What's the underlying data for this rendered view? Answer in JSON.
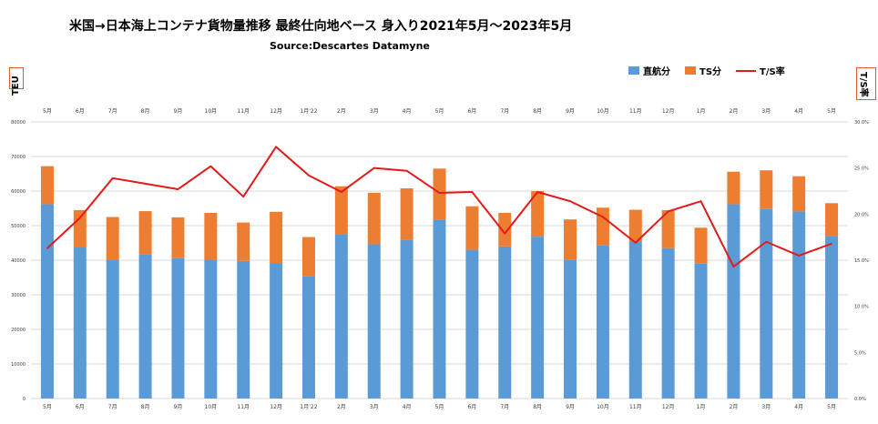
{
  "title": "米国→日本海上コンテナ貨物量推移  最終仕向地ベース  身入り2021年5月〜2023年5月",
  "subtitle": "Source:Descartes Datamyne",
  "left_axis_label": "TEU",
  "right_axis_label": "T/S率",
  "colors": {
    "direct": "#5b9bd5",
    "ts": "#ed7d31",
    "rate": "#e41a1a",
    "grid": "#d9d9d9"
  },
  "chart_data": {
    "type": "bar",
    "stacked": true,
    "categories": [
      "5月",
      "6月",
      "7月",
      "8月",
      "9月",
      "10月",
      "11月",
      "12月",
      "1月'22",
      "2月",
      "3月",
      "4月",
      "5月",
      "6月",
      "7月",
      "8月",
      "9月",
      "10月",
      "11月",
      "12月",
      "1月",
      "2月",
      "3月",
      "4月",
      "5月"
    ],
    "series": [
      {
        "name": "直航分",
        "type": "bar",
        "axis": "left",
        "values": [
          56200,
          43800,
          40100,
          41600,
          40600,
          40000,
          39800,
          39200,
          35300,
          47600,
          44600,
          46000,
          51800,
          43000,
          44000,
          46800,
          40200,
          44400,
          45400,
          43500,
          39000,
          56200,
          54800,
          54100,
          47000
        ]
      },
      {
        "name": "TS分",
        "type": "bar",
        "axis": "left",
        "values": [
          11000,
          10700,
          12400,
          12600,
          11800,
          13700,
          11100,
          14800,
          11400,
          13800,
          14900,
          14800,
          14700,
          12600,
          9700,
          13200,
          11600,
          10800,
          9200,
          11000,
          10400,
          9400,
          11200,
          10200,
          9500
        ]
      },
      {
        "name": "T/S率",
        "type": "line",
        "axis": "right",
        "values": [
          16.3,
          19.6,
          23.9,
          23.3,
          22.7,
          25.2,
          21.9,
          27.3,
          24.2,
          22.4,
          25.0,
          24.7,
          22.3,
          22.4,
          17.9,
          22.4,
          21.4,
          19.7,
          16.9,
          20.3,
          21.4,
          14.3,
          17.0,
          15.5,
          16.8
        ]
      }
    ],
    "ylim": [
      0,
      80000
    ],
    "yticks": [
      0,
      10000,
      20000,
      30000,
      40000,
      50000,
      60000,
      70000,
      80000
    ],
    "y2lim": [
      0,
      30
    ],
    "y2ticks": [
      "0.0%",
      "5.0%",
      "10.0%",
      "15.0%",
      "20.0%",
      "25.0%",
      "30.0%"
    ],
    "grid": true,
    "legend_position": "top-right"
  }
}
